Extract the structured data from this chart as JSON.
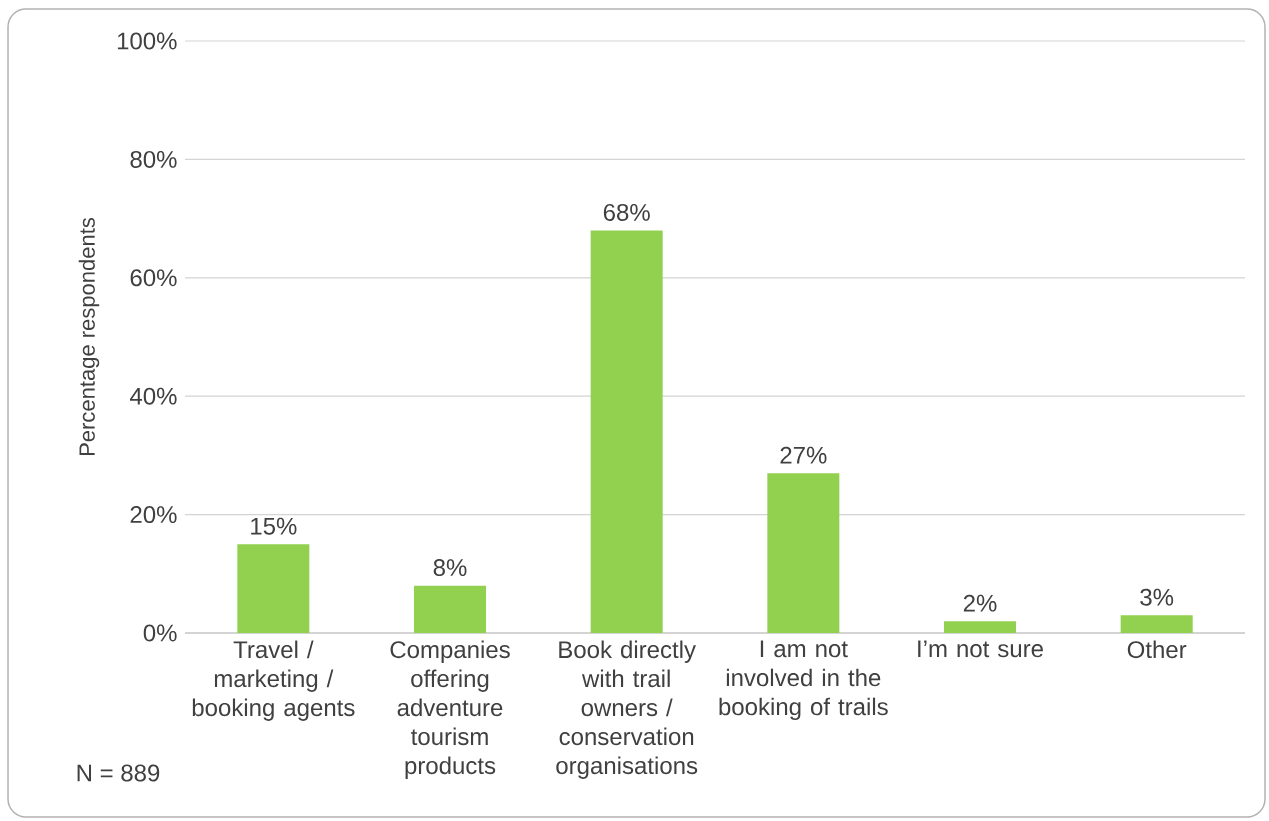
{
  "chart_data": {
    "type": "bar",
    "ylabel": "Percentage respondents",
    "categories": [
      "Travel / marketing / booking agents",
      "Companies offering adventure tourism products",
      "Book directly with trail owners / conservation organisations",
      "I am not involved in the booking of trails",
      "I’m not sure",
      "Other"
    ],
    "values": [
      15,
      8,
      68,
      27,
      2,
      3
    ],
    "value_labels": [
      "15%",
      "8%",
      "68%",
      "27%",
      "2%",
      "3%"
    ],
    "color": "#92d050",
    "ylim": [
      0,
      100
    ],
    "yticks": [
      {
        "value": 0,
        "label": "0%"
      },
      {
        "value": 20,
        "label": "20%"
      },
      {
        "value": 40,
        "label": "40%"
      },
      {
        "value": 60,
        "label": "60%"
      },
      {
        "value": 80,
        "label": "80%"
      },
      {
        "value": 100,
        "label": "100%"
      }
    ],
    "grid": "y",
    "annotations": [
      "N  =  889"
    ]
  }
}
